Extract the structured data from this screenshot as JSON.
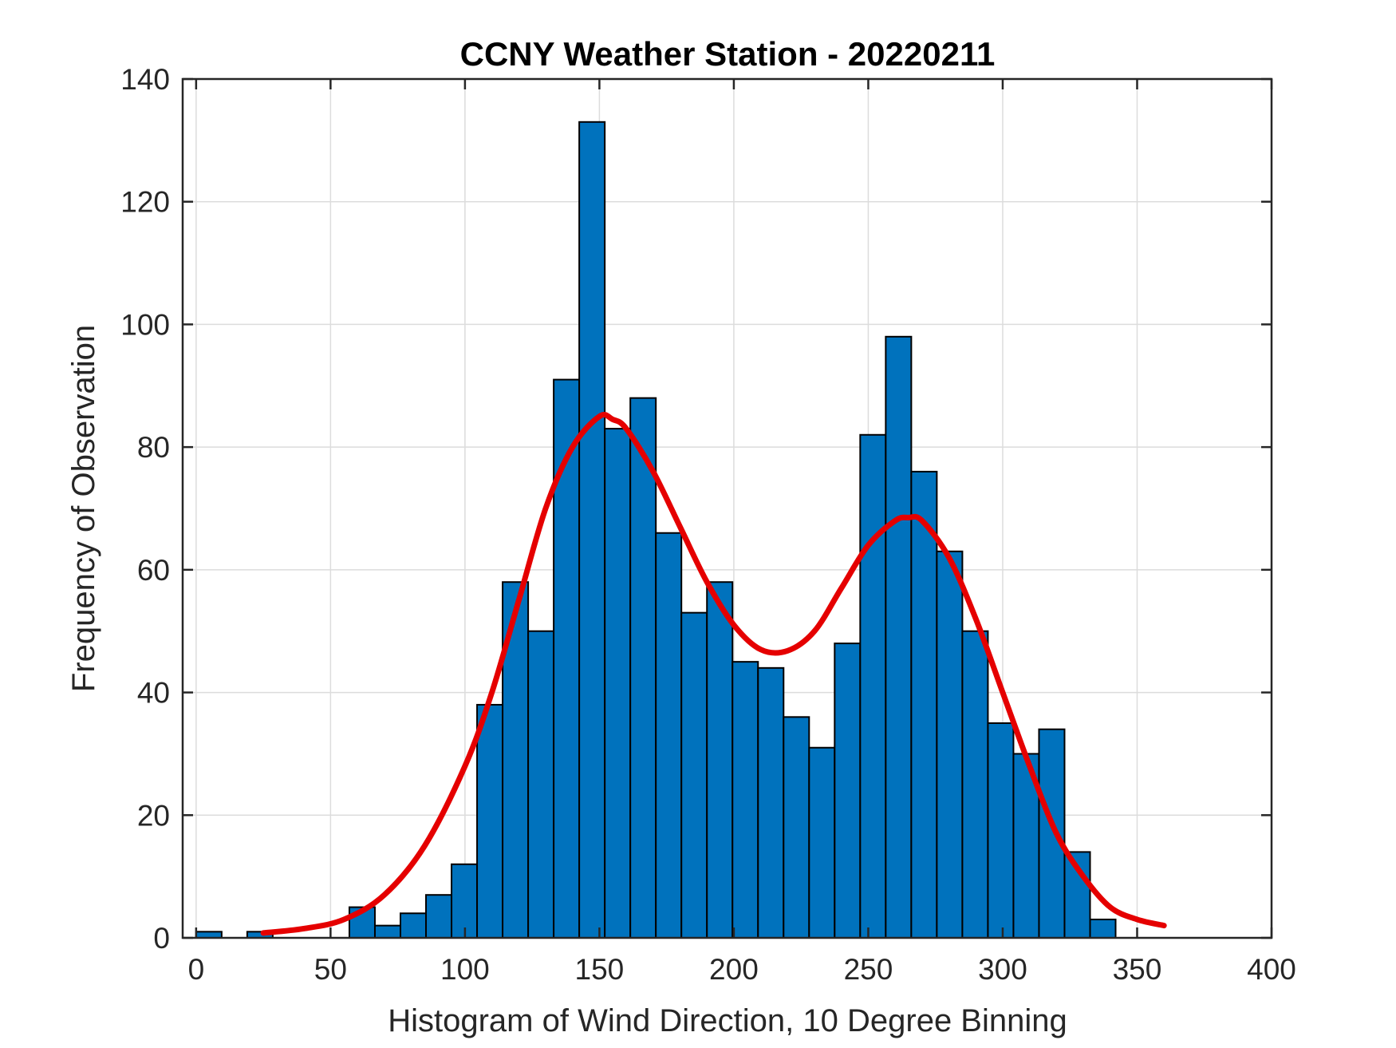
{
  "chart_data": {
    "type": "bar",
    "title": "CCNY Weather Station - 20220211",
    "xlabel": "Histogram of Wind Direction, 10 Degree Binning",
    "ylabel": "Frequency of Observation",
    "xlim": [
      -5,
      400
    ],
    "ylim": [
      0,
      140
    ],
    "xticks": [
      0,
      50,
      100,
      150,
      200,
      250,
      300,
      350,
      400
    ],
    "yticks": [
      0,
      20,
      40,
      60,
      80,
      100,
      120,
      140
    ],
    "grid": true,
    "bin_width": 9.5,
    "bins": [
      {
        "start": 0,
        "value": 1
      },
      {
        "start": 9.5,
        "value": 0
      },
      {
        "start": 19,
        "value": 1
      },
      {
        "start": 28.5,
        "value": 0
      },
      {
        "start": 38,
        "value": 0
      },
      {
        "start": 47.5,
        "value": 0
      },
      {
        "start": 57,
        "value": 5
      },
      {
        "start": 66.5,
        "value": 2
      },
      {
        "start": 76,
        "value": 4
      },
      {
        "start": 85.5,
        "value": 7
      },
      {
        "start": 95,
        "value": 12
      },
      {
        "start": 104.5,
        "value": 38
      },
      {
        "start": 114,
        "value": 58
      },
      {
        "start": 123.5,
        "value": 50
      },
      {
        "start": 133,
        "value": 91
      },
      {
        "start": 142.5,
        "value": 133
      },
      {
        "start": 152,
        "value": 83
      },
      {
        "start": 161.5,
        "value": 88
      },
      {
        "start": 171,
        "value": 66
      },
      {
        "start": 180.5,
        "value": 53
      },
      {
        "start": 190,
        "value": 58
      },
      {
        "start": 199.5,
        "value": 45
      },
      {
        "start": 209,
        "value": 44
      },
      {
        "start": 218.5,
        "value": 36
      },
      {
        "start": 228,
        "value": 31
      },
      {
        "start": 237.5,
        "value": 48
      },
      {
        "start": 247,
        "value": 82
      },
      {
        "start": 256.5,
        "value": 98
      },
      {
        "start": 266,
        "value": 76
      },
      {
        "start": 275.5,
        "value": 63
      },
      {
        "start": 285,
        "value": 50
      },
      {
        "start": 294.5,
        "value": 35
      },
      {
        "start": 304,
        "value": 30
      },
      {
        "start": 313.5,
        "value": 34
      },
      {
        "start": 323,
        "value": 14
      },
      {
        "start": 332.5,
        "value": 3
      }
    ],
    "fit_curve": {
      "type": "line",
      "x": [
        25,
        40,
        55,
        70,
        85,
        100,
        110,
        120,
        130,
        140,
        150,
        155,
        160,
        170,
        180,
        190,
        200,
        210,
        220,
        230,
        240,
        250,
        260,
        265,
        270,
        280,
        290,
        300,
        310,
        320,
        330,
        340,
        350,
        360
      ],
      "values": [
        0.8,
        1.5,
        3,
        7,
        15,
        28,
        40,
        55,
        70,
        80,
        85,
        84.5,
        83,
        76,
        67,
        58,
        51,
        47,
        46.8,
        50,
        57,
        64,
        68,
        68.5,
        68,
        62,
        52,
        40,
        28,
        17,
        10,
        5,
        3,
        2
      ]
    },
    "colors": {
      "bar_fill": "#0072BD",
      "bar_edge": "#000000",
      "fit_line": "#E50000",
      "grid": "#DCDCDC",
      "axis": "#262626"
    }
  }
}
